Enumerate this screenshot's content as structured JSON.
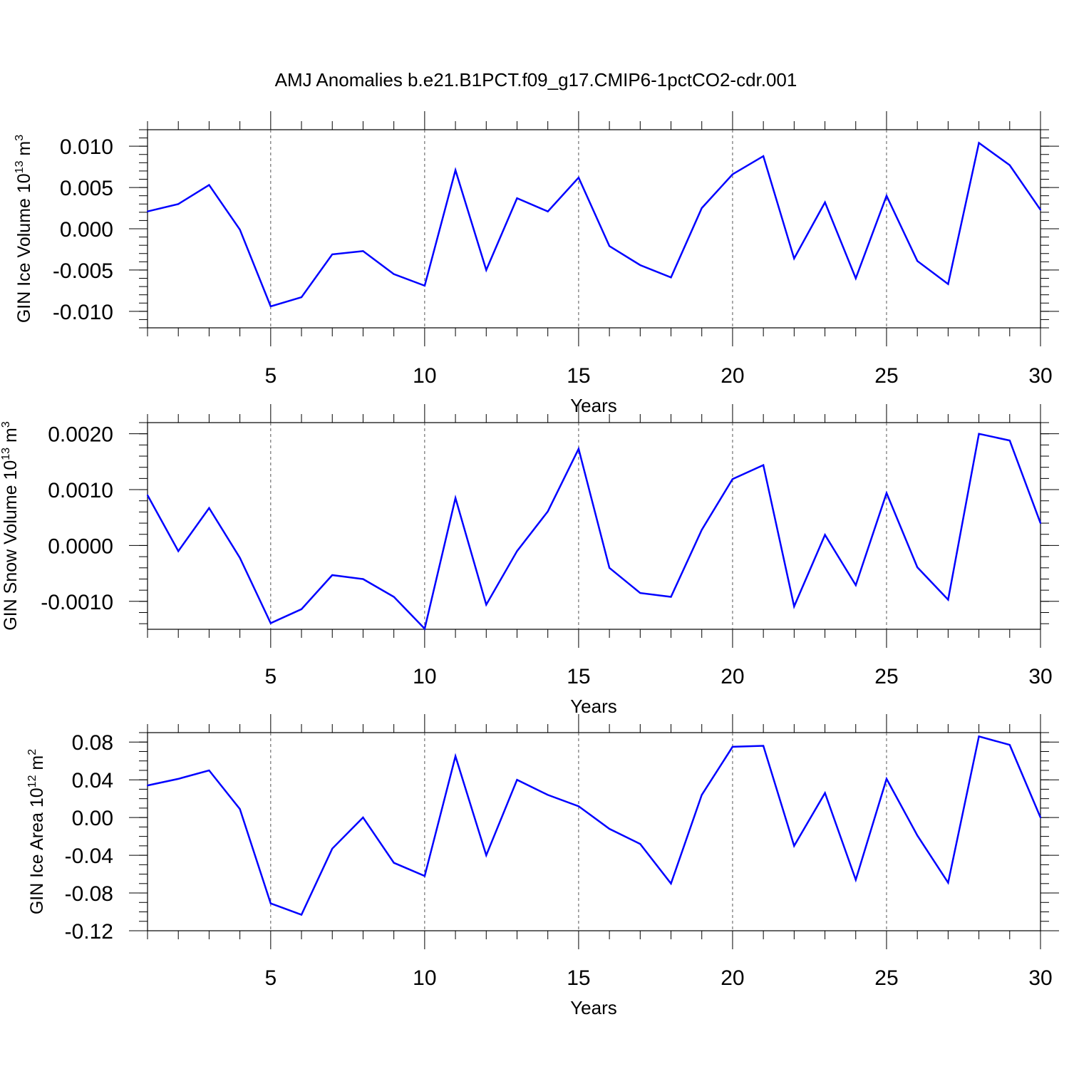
{
  "title": "AMJ Anomalies b.e21.B1PCT.f09_g17.CMIP6-1pctCO2-cdr.001",
  "chart_data": [
    {
      "type": "line",
      "ylabel": "GIN Ice Volume 10",
      "ylabel_exp": "13",
      "ylabel_unit": " m",
      "ylabel_unit_exp": "3",
      "xlabel": "Years",
      "xlim": [
        1,
        30
      ],
      "ylim": [
        -0.012,
        0.012
      ],
      "xticks": [
        "5",
        "10",
        "15",
        "20",
        "25",
        "30"
      ],
      "yticks": [
        "0.010",
        "0.005",
        "0.000",
        "-0.005",
        "-0.010"
      ],
      "series": [
        {
          "color": "#0000ff",
          "x": [
            1,
            2,
            3,
            4,
            5,
            6,
            7,
            8,
            9,
            10,
            11,
            12,
            13,
            14,
            15,
            16,
            17,
            18,
            19,
            20,
            21,
            22,
            23,
            24,
            25,
            26,
            27,
            28,
            29,
            30
          ],
          "values": [
            0.0021,
            0.003,
            0.0053,
            -0.0001,
            -0.0094,
            -0.0083,
            -0.0031,
            -0.0027,
            -0.0055,
            -0.0069,
            0.0071,
            -0.005,
            0.0037,
            0.0021,
            0.0062,
            -0.0021,
            -0.0044,
            -0.0059,
            0.0025,
            0.0066,
            0.0088,
            -0.0036,
            0.0032,
            -0.006,
            0.004,
            -0.0039,
            -0.0067,
            0.0104,
            0.0077,
            0.0023
          ]
        }
      ]
    },
    {
      "type": "line",
      "ylabel": "GIN Snow Volume 10",
      "ylabel_exp": "13",
      "ylabel_unit": " m",
      "ylabel_unit_exp": "3",
      "xlabel": "Years",
      "xlim": [
        1,
        30
      ],
      "ylim": [
        -0.0015,
        0.0022
      ],
      "xticks": [
        "5",
        "10",
        "15",
        "20",
        "25",
        "30"
      ],
      "yticks": [
        "0.0020",
        "0.0010",
        "0.0000",
        "-0.0010"
      ],
      "series": [
        {
          "color": "#0000ff",
          "x": [
            1,
            2,
            3,
            4,
            5,
            6,
            7,
            8,
            9,
            10,
            11,
            12,
            13,
            14,
            15,
            16,
            17,
            18,
            19,
            20,
            21,
            22,
            23,
            24,
            25,
            26,
            27,
            28,
            29,
            30
          ],
          "values": [
            0.0009,
            -0.0001,
            0.00067,
            -0.00022,
            -0.00139,
            -0.00114,
            -0.00053,
            -0.0006,
            -0.00092,
            -0.00149,
            0.00085,
            -0.00106,
            -0.0001,
            0.00061,
            0.00173,
            -0.0004,
            -0.00085,
            -0.00092,
            0.00028,
            0.00119,
            0.00144,
            -0.00109,
            0.00019,
            -0.00071,
            0.00094,
            -0.00039,
            -0.00097,
            0.002,
            0.00188,
            0.0004
          ]
        }
      ]
    },
    {
      "type": "line",
      "ylabel": "GIN Ice Area 10",
      "ylabel_exp": "12",
      "ylabel_unit": " m",
      "ylabel_unit_exp": "2",
      "xlabel": "Years",
      "xlim": [
        1,
        30
      ],
      "ylim": [
        -0.12,
        0.09
      ],
      "xticks": [
        "5",
        "10",
        "15",
        "20",
        "25",
        "30"
      ],
      "yticks": [
        "0.08",
        "0.04",
        "0.00",
        "-0.04",
        "-0.08",
        "-0.12"
      ],
      "series": [
        {
          "color": "#0000ff",
          "x": [
            1,
            2,
            3,
            4,
            5,
            6,
            7,
            8,
            9,
            10,
            11,
            12,
            13,
            14,
            15,
            16,
            17,
            18,
            19,
            20,
            21,
            22,
            23,
            24,
            25,
            26,
            27,
            28,
            29,
            30
          ],
          "values": [
            0.034,
            0.041,
            0.05,
            0.009,
            -0.091,
            -0.103,
            -0.033,
            0.0,
            -0.048,
            -0.062,
            0.065,
            -0.04,
            0.04,
            0.024,
            0.012,
            -0.012,
            -0.028,
            -0.07,
            0.024,
            0.075,
            0.076,
            -0.03,
            0.026,
            -0.066,
            0.041,
            -0.019,
            -0.069,
            0.086,
            0.077,
            0.0
          ]
        }
      ]
    }
  ]
}
